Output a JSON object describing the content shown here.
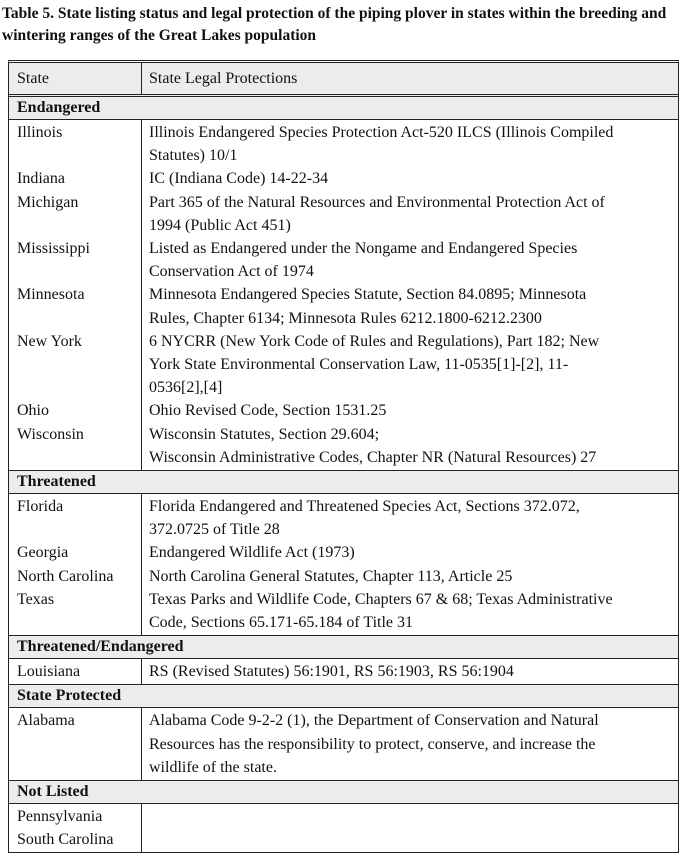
{
  "title": "Table 5.  State listing status and legal protection of the piping plover in states within the breeding and wintering ranges of the Great Lakes population",
  "headers": {
    "state": "State",
    "protections": "State Legal Protections"
  },
  "sections": [
    {
      "label": "Endangered",
      "rows": [
        {
          "state": "Illinois",
          "lines": [
            "Illinois Endangered Species Protection Act-520 ILCS (Illinois Compiled",
            "Statutes) 10/1"
          ]
        },
        {
          "state": "Indiana",
          "lines": [
            "IC (Indiana Code) 14-22-34"
          ]
        },
        {
          "state": "Michigan",
          "lines": [
            "Part 365 of the Natural Resources and Environmental Protection Act of",
            "1994 (Public Act 451)"
          ]
        },
        {
          "state": "Mississippi",
          "lines": [
            "Listed as Endangered under the Nongame and Endangered Species",
            "Conservation Act of 1974"
          ]
        },
        {
          "state": "Minnesota",
          "lines": [
            "Minnesota Endangered Species Statute, Section 84.0895; Minnesota",
            "Rules, Chapter 6134; Minnesota Rules 6212.1800-6212.2300"
          ]
        },
        {
          "state": "New York",
          "lines": [
            "6 NYCRR (New York Code of Rules and Regulations), Part 182; New",
            "York State Environmental Conservation Law, 11-0535[1]-[2], 11-",
            "0536[2],[4]"
          ]
        },
        {
          "state": "Ohio",
          "lines": [
            "Ohio Revised Code, Section 1531.25"
          ]
        },
        {
          "state": "Wisconsin",
          "lines": [
            "Wisconsin Statutes, Section 29.604;",
            "Wisconsin Administrative Codes, Chapter NR (Natural Resources) 27"
          ]
        }
      ]
    },
    {
      "label": "Threatened",
      "rows": [
        {
          "state": "Florida",
          "lines": [
            "Florida Endangered and Threatened Species Act, Sections 372.072,",
            "372.0725 of Title 28"
          ]
        },
        {
          "state": "Georgia",
          "lines": [
            "Endangered Wildlife Act (1973)"
          ]
        },
        {
          "state": "North Carolina",
          "lines": [
            "North Carolina General Statutes, Chapter 113, Article 25"
          ]
        },
        {
          "state": "Texas",
          "lines": [
            "Texas Parks and Wildlife Code, Chapters 67 & 68; Texas Administrative",
            "Code, Sections 65.171-65.184 of Title 31"
          ]
        }
      ]
    },
    {
      "label": "Threatened/Endangered",
      "rows": [
        {
          "state": "Louisiana",
          "lines": [
            "RS (Revised Statutes) 56:1901, RS 56:1903, RS 56:1904"
          ]
        }
      ]
    },
    {
      "label": "State Protected",
      "rows": [
        {
          "state": "Alabama",
          "lines": [
            "Alabama Code 9-2-2 (1), the Department of Conservation and Natural",
            "Resources has the responsibility to protect, conserve, and increase the",
            "wildlife of the state."
          ]
        }
      ]
    },
    {
      "label": "Not Listed",
      "rows": [
        {
          "state": "Pennsylvania",
          "lines": []
        },
        {
          "state": "South Carolina",
          "lines": []
        }
      ]
    }
  ]
}
